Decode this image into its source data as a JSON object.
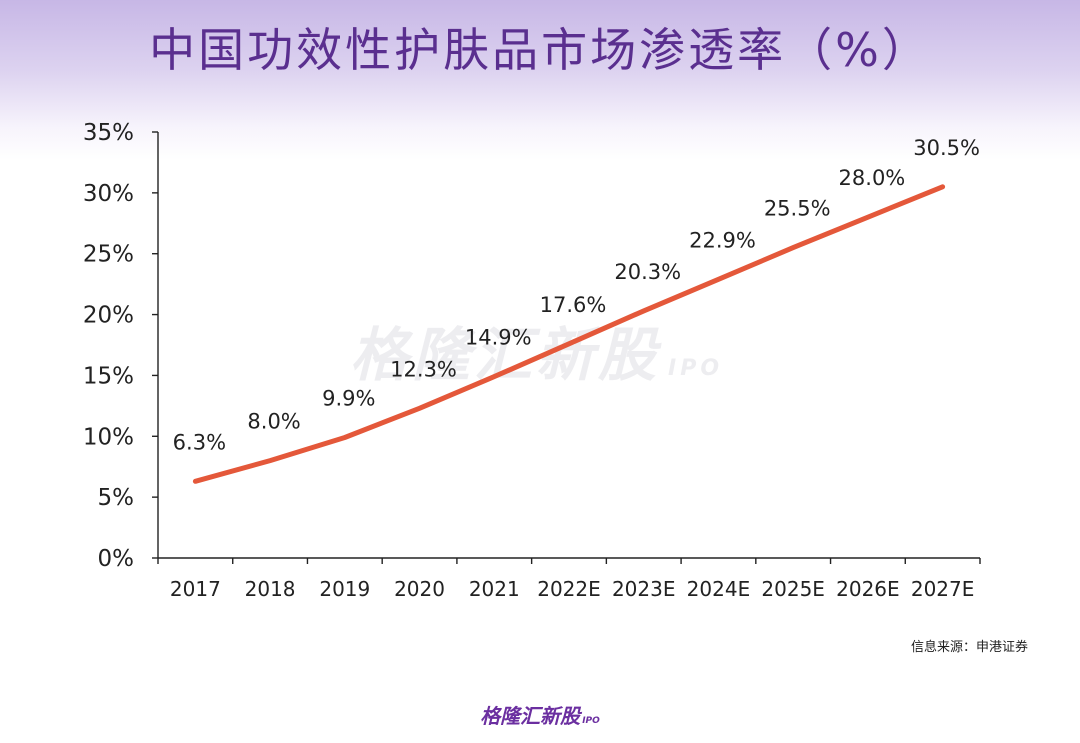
{
  "title": "中国功效性护肤品市场渗透率（%）",
  "source": "信息来源：申港证券",
  "logo": {
    "text": "格隆汇新股",
    "sub": "IPO"
  },
  "watermark": {
    "text": "格隆汇新股",
    "sub": "IPO"
  },
  "colors": {
    "line": "#e4583a",
    "title": "#5a2f8f",
    "axis": "#222222"
  },
  "chart_data": {
    "type": "line",
    "title": "中国功效性护肤品市场渗透率（%）",
    "categories": [
      "2017",
      "2018",
      "2019",
      "2020",
      "2021",
      "2022E",
      "2023E",
      "2024E",
      "2025E",
      "2026E",
      "2027E"
    ],
    "values": [
      6.3,
      8.0,
      9.9,
      12.3,
      14.9,
      17.6,
      20.3,
      22.9,
      25.5,
      28.0,
      30.5
    ],
    "data_labels": [
      "6.3%",
      "8.0%",
      "9.9%",
      "12.3%",
      "14.9%",
      "17.6%",
      "20.3%",
      "22.9%",
      "25.5%",
      "28.0%",
      "30.5%"
    ],
    "y_ticks": [
      0,
      5,
      10,
      15,
      20,
      25,
      30,
      35
    ],
    "y_tick_labels": [
      "0%",
      "5%",
      "10%",
      "15%",
      "20%",
      "25%",
      "30%",
      "35%"
    ],
    "ylim": [
      0,
      35
    ],
    "xlabel": "",
    "ylabel": "",
    "grid": false,
    "legend": "none"
  }
}
